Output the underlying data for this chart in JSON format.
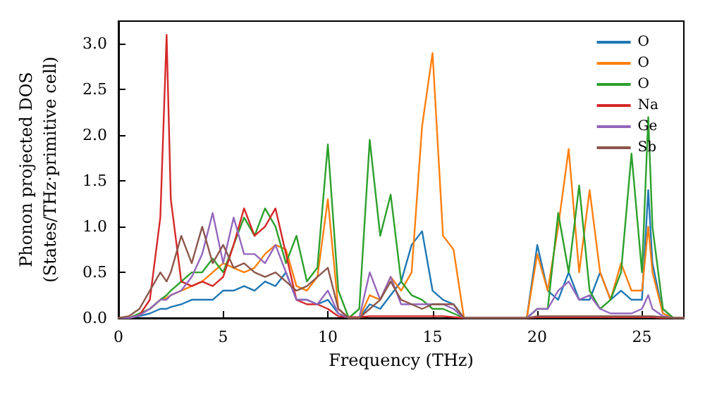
{
  "chart_data": {
    "type": "line",
    "xlabel": "Frequency (THz)",
    "ylabel": "Phonon projected DOS\n(States/THz·primitive cell)",
    "x": [
      0,
      0.5,
      1,
      1.5,
      2,
      2.3,
      2.5,
      3,
      3.5,
      4,
      4.5,
      5,
      5.5,
      6,
      6.5,
      7,
      7.5,
      8,
      8.5,
      9,
      9.5,
      10,
      10.5,
      11,
      11.5,
      12,
      12.5,
      13,
      13.5,
      14,
      14.5,
      15,
      15.5,
      16,
      16.5,
      17,
      17.5,
      18,
      18.5,
      19,
      19.5,
      20,
      20.5,
      21,
      21.5,
      22,
      22.5,
      23,
      23.5,
      24,
      24.5,
      25,
      25.3,
      25.5,
      26,
      26.5,
      27
    ],
    "series": [
      {
        "name": "O",
        "color": "#1f77b4",
        "values": [
          0,
          0,
          0.02,
          0.05,
          0.1,
          0.1,
          0.12,
          0.15,
          0.2,
          0.2,
          0.2,
          0.3,
          0.3,
          0.35,
          0.3,
          0.4,
          0.35,
          0.5,
          0.2,
          0.2,
          0.15,
          0.2,
          0.05,
          0,
          0,
          0.15,
          0.1,
          0.25,
          0.4,
          0.8,
          0.95,
          0.3,
          0.2,
          0.15,
          0,
          0,
          0,
          0,
          0,
          0,
          0,
          0.8,
          0.3,
          0.2,
          0.5,
          0.2,
          0.2,
          0.5,
          0.2,
          0.3,
          0.2,
          0.2,
          1.4,
          0.6,
          0.05,
          0,
          0
        ]
      },
      {
        "name": "O",
        "color": "#ff7f0e",
        "values": [
          null,
          null,
          null,
          0.1,
          0.2,
          0.22,
          0.25,
          0.3,
          0.35,
          0.4,
          0.5,
          0.6,
          0.55,
          0.5,
          0.55,
          0.7,
          0.8,
          0.75,
          0.35,
          0.3,
          0.45,
          1.3,
          0.1,
          0,
          0,
          0.25,
          0.2,
          0.45,
          0.3,
          0.5,
          2.1,
          2.9,
          0.9,
          0.75,
          0,
          0,
          0,
          0,
          0,
          0,
          0,
          0.7,
          0.3,
          1.0,
          1.85,
          0.5,
          1.4,
          0.5,
          0.2,
          0.6,
          0.3,
          0.3,
          1.0,
          0.5,
          0.05,
          0,
          0
        ]
      },
      {
        "name": "O",
        "color": "#2ca02c",
        "values": [
          0,
          0,
          0.05,
          0.1,
          0.2,
          0.25,
          0.3,
          0.4,
          0.5,
          0.5,
          0.65,
          0.5,
          0.8,
          1.1,
          0.9,
          1.2,
          1.0,
          0.6,
          0.9,
          0.4,
          0.55,
          1.9,
          0.3,
          0,
          0.1,
          1.95,
          0.9,
          1.35,
          0.4,
          0.25,
          0.2,
          0.1,
          0.1,
          0.05,
          0,
          0,
          0,
          0,
          0,
          0,
          0,
          0.1,
          0.1,
          1.15,
          0.5,
          1.45,
          0.3,
          0.1,
          0.2,
          0.5,
          1.8,
          0.5,
          2.2,
          1.0,
          0.1,
          0,
          0
        ]
      },
      {
        "name": "Na",
        "color": "#d62728",
        "values": [
          0,
          0,
          0.03,
          0.2,
          1.1,
          3.1,
          1.3,
          0.4,
          0.35,
          0.4,
          0.35,
          0.45,
          0.8,
          1.2,
          0.9,
          1.0,
          1.2,
          0.7,
          0.2,
          0.15,
          0.15,
          0.1,
          0.02,
          0.01,
          0.01,
          0.02,
          0.02,
          0.02,
          0.02,
          0.02,
          0.02,
          0.02,
          0.02,
          0.01,
          0,
          0,
          0,
          0,
          0,
          0,
          0,
          0.01,
          0.01,
          0.01,
          0.01,
          0.01,
          0.01,
          0.01,
          0.01,
          0.01,
          0.01,
          0.01,
          0.01,
          0.01,
          0,
          0,
          0
        ]
      },
      {
        "name": "Ge",
        "color": "#9467bd",
        "values": [
          0,
          0,
          0.03,
          0.1,
          0.2,
          0.2,
          0.25,
          0.3,
          0.45,
          0.7,
          1.15,
          0.6,
          1.1,
          0.7,
          0.7,
          0.6,
          0.8,
          0.5,
          0.2,
          0.2,
          0.15,
          0.3,
          0.05,
          0,
          0,
          0.5,
          0.2,
          0.45,
          0.15,
          0.15,
          0.15,
          0.15,
          0.15,
          0.1,
          0,
          0,
          0,
          0,
          0,
          0,
          0,
          0.1,
          0.1,
          0.3,
          0.4,
          0.2,
          0.25,
          0.1,
          0.05,
          0.05,
          0.05,
          0.1,
          0.25,
          0.1,
          0.02,
          0,
          0
        ]
      },
      {
        "name": "Sb",
        "color": "#8c564b",
        "values": [
          0,
          0.02,
          0.1,
          0.3,
          0.5,
          0.4,
          0.5,
          0.9,
          0.6,
          1.0,
          0.6,
          0.8,
          0.55,
          0.6,
          0.5,
          0.45,
          0.5,
          0.4,
          0.3,
          0.35,
          0.45,
          0.55,
          0.1,
          0,
          0,
          0.1,
          0.2,
          0.4,
          0.2,
          0.15,
          0.1,
          0.15,
          0.15,
          0.15,
          0,
          0,
          0,
          0,
          0,
          0,
          0,
          0.02,
          0.02,
          0.02,
          0.02,
          0.02,
          0.02,
          0.02,
          0.02,
          0.02,
          0.02,
          0.02,
          0.02,
          0.02,
          0.01,
          0,
          0
        ]
      }
    ],
    "xlim": [
      0,
      27
    ],
    "xticks": [
      0,
      5,
      10,
      15,
      20,
      25
    ],
    "ylim": [
      0,
      3.25
    ],
    "yticks": [
      {
        "value": 0,
        "label": "0.0"
      },
      {
        "value": 0.5,
        "label": "0.5"
      },
      {
        "value": 1,
        "label": "1.0"
      },
      {
        "value": 1.5,
        "label": "1.5"
      },
      {
        "value": 2,
        "label": "2.0"
      },
      {
        "value": 2.5,
        "label": "2.5"
      },
      {
        "value": 3,
        "label": "3.0"
      }
    ],
    "legend": "top right",
    "line_style": "solid",
    "marker": "none"
  }
}
